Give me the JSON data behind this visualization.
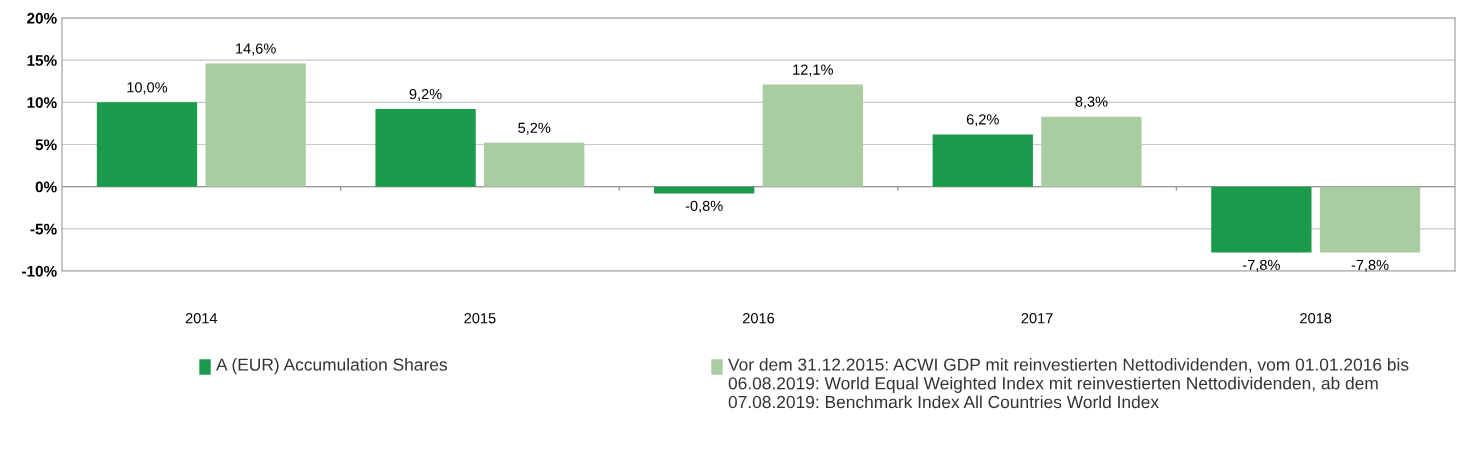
{
  "chart_data": {
    "type": "bar",
    "categories": [
      "2014",
      "2015",
      "2016",
      "2017",
      "2018"
    ],
    "series": [
      {
        "name": "A (EUR) Accumulation Shares",
        "color": "#1a9a4a",
        "values": [
          10.0,
          9.2,
          -0.8,
          6.2,
          -7.8
        ],
        "value_labels": [
          "10,0%",
          "9,2%",
          "-0,8%",
          "6,2%",
          "-7,8%"
        ]
      },
      {
        "name": "Vor dem 31.12.2015: ACWI GDP mit reinvestierten Nettodividenden, vom 01.01.2016 bis 06.08.2019: World Equal Weighted Index mit reinvestierten Nettodividenden, ab dem 07.08.2019: Benchmark Index All Countries World Index",
        "color": "#a9cca0",
        "values": [
          14.6,
          5.2,
          12.1,
          8.3,
          -7.8
        ],
        "value_labels": [
          "14,6%",
          "5,2%",
          "12,1%",
          "8,3%",
          "-7,8%"
        ]
      }
    ],
    "ylim": [
      -10,
      20
    ],
    "yticks": [
      {
        "value": -10,
        "label": "-10%"
      },
      {
        "value": -5,
        "label": "-5%"
      },
      {
        "value": 0,
        "label": "0%"
      },
      {
        "value": 5,
        "label": "5%"
      },
      {
        "value": 10,
        "label": "10%"
      },
      {
        "value": 15,
        "label": "15%"
      },
      {
        "value": 20,
        "label": "20%"
      }
    ],
    "grid": "y",
    "legend": "bottom"
  }
}
